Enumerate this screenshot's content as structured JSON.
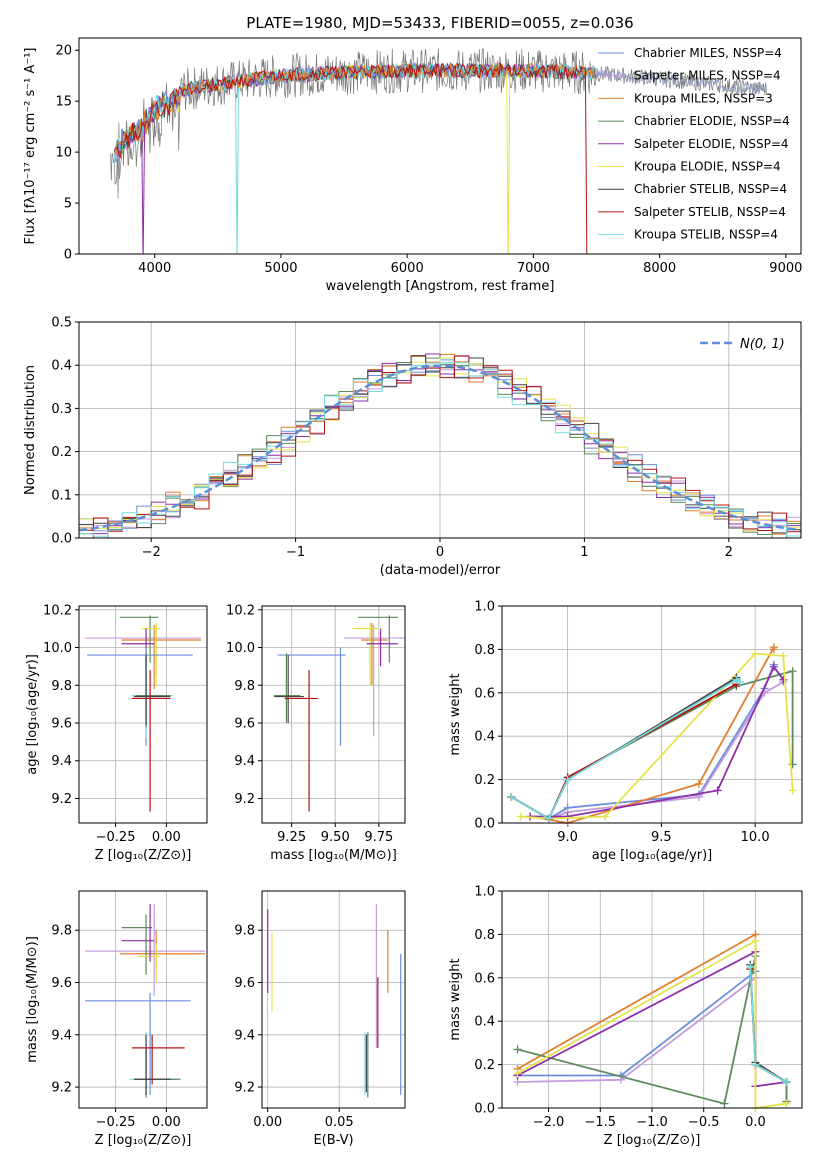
{
  "colors": [
    "#6b8fdc",
    "#c49ae0",
    "#e07f2f",
    "#5e8a5e",
    "#8e2fa8",
    "#e6e24b",
    "#444444",
    "#b01515",
    "#73dbe0"
  ],
  "chart_data": [
    {
      "type": "line",
      "title": "PLATE=1980, MJD=53433, FIBERID=0055, z=0.036",
      "xlabel": "wavelength [Angstrom, rest frame]",
      "ylabel": "Flux [fλ10⁻¹⁷ erg cm⁻² s⁻¹ A⁻¹]",
      "xlim": [
        3400,
        9120
      ],
      "ylim": [
        0,
        21.2
      ],
      "xticks": [
        "4000",
        "5000",
        "6000",
        "7000",
        "8000",
        "9000"
      ],
      "yticks": [
        "0",
        "5",
        "10",
        "15",
        "20"
      ],
      "legend_position": "right",
      "legend": [
        "Chabrier MILES, NSSP=4",
        "Salpeter MILES, NSSP=4",
        "Kroupa MILES, NSSP=3",
        "Chabrier ELODIE, NSSP=4",
        "Salpeter ELODIE, NSSP=4",
        "Kroupa ELODIE, NSSP=4",
        "Chabrier STELIB, NSSP=4",
        "Salpeter STELIB, NSSP=4",
        "Kroupa STELIB, NSSP=4"
      ],
      "continuum": {
        "x": [
          3650,
          3750,
          3900,
          4000,
          4200,
          4400,
          4700,
          5000,
          5500,
          6000,
          6500,
          7000,
          7400,
          8000,
          8800
        ],
        "y": [
          10,
          12,
          13,
          15,
          16,
          16.5,
          17,
          17.5,
          17.8,
          18,
          18,
          18,
          17.8,
          17.2,
          16.2
        ]
      },
      "drops": [
        {
          "x": 3900,
          "series": "Salpeter ELODIE"
        },
        {
          "x": 4650,
          "series": "Kroupa STELIB"
        },
        {
          "x": 6800,
          "series": "Kroupa ELODIE"
        },
        {
          "x": 7420,
          "series": "Salpeter STELIB"
        }
      ],
      "model_end": 7500,
      "data_range": [
        3650,
        8850
      ]
    },
    {
      "type": "histogram",
      "xlabel": "(data-model)/error",
      "ylabel": "Normed distribution",
      "xlim": [
        -2.5,
        2.5
      ],
      "ylim": [
        0,
        0.5
      ],
      "xticks": [
        "−2",
        "−1",
        "0",
        "1",
        "2"
      ],
      "yticks": [
        "0.0",
        "0.1",
        "0.2",
        "0.3",
        "0.4",
        "0.5"
      ],
      "legend": [
        "N(0, 1)"
      ],
      "grid": true
    },
    {
      "type": "errorbar",
      "xlabel": "Z [log₁₀(Z/Z⊙)]",
      "ylabel": "age  [log₁₀(age/yr)]",
      "xlim": [
        -0.43,
        0.2
      ],
      "ylim": [
        9.07,
        10.22
      ],
      "xticks": [
        "−0.25",
        "0.00"
      ],
      "yticks": [
        "9.2",
        "9.4",
        "9.6",
        "9.8",
        "10.0",
        "10.2"
      ],
      "points": [
        {
          "x": -0.05,
          "y": 10.05,
          "xe": [
            -0.4,
            0.17
          ],
          "ye": [
            9.85,
            10.12
          ],
          "c": 1
        },
        {
          "x": -0.06,
          "y": 10.04,
          "xe": [
            -0.22,
            0.17
          ],
          "ye": [
            9.78,
            10.12
          ],
          "c": 2
        },
        {
          "x": -0.08,
          "y": 10.16,
          "xe": [
            -0.23,
            -0.04
          ],
          "ye": [
            9.92,
            10.17
          ],
          "c": 3
        },
        {
          "x": -0.05,
          "y": 10.1,
          "xe": [
            -0.12,
            -0.03
          ],
          "ye": [
            9.8,
            10.13
          ],
          "c": 5
        },
        {
          "x": -0.1,
          "y": 10.02,
          "xe": [
            -0.22,
            -0.06
          ],
          "ye": [
            9.9,
            10.1
          ],
          "c": 4
        },
        {
          "x": -0.1,
          "y": 9.96,
          "xe": [
            -0.39,
            0.13
          ],
          "ye": [
            9.48,
            10.0
          ],
          "c": 0
        },
        {
          "x": -0.1,
          "y": 9.745,
          "xe": [
            -0.17,
            0.03
          ],
          "ye": [
            9.52,
            9.92
          ],
          "c": 8
        },
        {
          "x": -0.1,
          "y": 9.745,
          "xe": [
            -0.15,
            0.02
          ],
          "ye": [
            9.58,
            9.97
          ],
          "c": 3
        },
        {
          "x": -0.1,
          "y": 9.74,
          "xe": [
            -0.16,
            0.02
          ],
          "ye": [
            9.59,
            9.96
          ],
          "c": 6
        },
        {
          "x": -0.08,
          "y": 9.73,
          "xe": [
            -0.17,
            0.02
          ],
          "ye": [
            9.13,
            9.88
          ],
          "c": 7
        }
      ]
    },
    {
      "type": "errorbar",
      "xlabel": "mass [log₁₀(M/M⊙)]",
      "ylabel": "",
      "xlim": [
        9.08,
        9.9
      ],
      "ylim": [
        9.07,
        10.22
      ],
      "xticks": [
        "9.25",
        "9.50",
        "9.75"
      ],
      "yticks": [
        "9.2",
        "9.4",
        "9.6",
        "9.8",
        "10.0",
        "10.2"
      ],
      "points": [
        {
          "x": 9.72,
          "y": 10.05,
          "xe": [
            9.55,
            9.9
          ],
          "ye": [
            9.53,
            10.12
          ],
          "c": 1
        },
        {
          "x": 9.71,
          "y": 10.04,
          "xe": [
            9.65,
            9.8
          ],
          "ye": [
            9.8,
            10.13
          ],
          "c": 2
        },
        {
          "x": 9.81,
          "y": 10.16,
          "xe": [
            9.63,
            9.86
          ],
          "ye": [
            9.92,
            10.17
          ],
          "c": 3
        },
        {
          "x": 9.7,
          "y": 10.1,
          "xe": [
            9.6,
            9.75
          ],
          "ye": [
            9.8,
            10.13
          ],
          "c": 5
        },
        {
          "x": 9.76,
          "y": 10.02,
          "xe": [
            9.68,
            9.86
          ],
          "ye": [
            9.9,
            10.1
          ],
          "c": 4
        },
        {
          "x": 9.53,
          "y": 9.96,
          "xe": [
            9.17,
            9.56
          ],
          "ye": [
            9.48,
            10.0
          ],
          "c": 0
        },
        {
          "x": 9.22,
          "y": 9.745,
          "xe": [
            9.15,
            9.24
          ],
          "ye": [
            9.62,
            9.92
          ],
          "c": 8
        },
        {
          "x": 9.22,
          "y": 9.745,
          "xe": [
            9.15,
            9.3
          ],
          "ye": [
            9.6,
            9.97
          ],
          "c": 3
        },
        {
          "x": 9.23,
          "y": 9.74,
          "xe": [
            9.15,
            9.32
          ],
          "ye": [
            9.6,
            9.96
          ],
          "c": 6
        },
        {
          "x": 9.35,
          "y": 9.73,
          "xe": [
            9.21,
            9.4
          ],
          "ye": [
            9.13,
            9.88
          ],
          "c": 7
        }
      ]
    },
    {
      "type": "line",
      "xlabel": "age  [log₁₀(age/yr)]",
      "ylabel": "mass weight",
      "xlim": [
        8.65,
        10.25
      ],
      "ylim": [
        0,
        1.0
      ],
      "xticks": [
        "9.0",
        "9.5",
        "10.0"
      ],
      "yticks": [
        "0.0",
        "0.2",
        "0.4",
        "0.6",
        "0.8",
        "1.0"
      ],
      "grid": true,
      "series": [
        {
          "c": 0,
          "x": [
            8.7,
            8.9,
            9.0,
            9.7,
            10.05,
            10.1
          ],
          "y": [
            0.12,
            0.02,
            0.07,
            0.13,
            0.62,
            0.73
          ]
        },
        {
          "c": 1,
          "x": [
            8.7,
            8.9,
            9.0,
            9.7,
            10.05,
            10.15
          ],
          "y": [
            0.12,
            0.02,
            0.05,
            0.12,
            0.6,
            0.65
          ]
        },
        {
          "c": 2,
          "x": [
            8.8,
            9.0,
            9.7,
            10.1,
            10.1
          ],
          "y": [
            0.03,
            0.0,
            0.18,
            0.81,
            0.8
          ]
        },
        {
          "c": 3,
          "x": [
            8.7,
            8.9,
            9.0,
            9.9,
            10.2,
            10.2
          ],
          "y": [
            0.12,
            0.02,
            0.21,
            0.63,
            0.7,
            0.27
          ]
        },
        {
          "c": 4,
          "x": [
            8.8,
            9.0,
            9.8,
            10.1,
            10.15
          ],
          "y": [
            0.03,
            0.03,
            0.15,
            0.72,
            0.66
          ]
        },
        {
          "c": 5,
          "x": [
            8.75,
            8.9,
            9.2,
            10.0,
            10.15,
            10.2
          ],
          "y": [
            0.03,
            0.02,
            0.03,
            0.78,
            0.77,
            0.15
          ]
        },
        {
          "c": 6,
          "x": [
            8.7,
            8.9,
            9.0,
            9.9,
            9.9
          ],
          "y": [
            0.12,
            0.02,
            0.2,
            0.67,
            0.66
          ]
        },
        {
          "c": 7,
          "x": [
            8.7,
            8.9,
            9.0,
            9.9
          ],
          "y": [
            0.12,
            0.02,
            0.21,
            0.64
          ]
        },
        {
          "c": 8,
          "x": [
            8.7,
            8.9,
            9.0,
            9.9,
            9.92
          ],
          "y": [
            0.12,
            0.02,
            0.2,
            0.66,
            0.65
          ]
        }
      ]
    },
    {
      "type": "errorbar",
      "xlabel": "Z [log₁₀(Z/Z⊙)]",
      "ylabel": "mass [log₁₀(M/M⊙)]",
      "xlim": [
        -0.43,
        0.2
      ],
      "ylim": [
        9.12,
        9.95
      ],
      "xticks": [
        "−0.25",
        "0.00"
      ],
      "yticks": [
        "9.2",
        "9.4",
        "9.6",
        "9.8"
      ],
      "points": [
        {
          "x": -0.06,
          "y": 9.72,
          "xe": [
            -0.4,
            0.19
          ],
          "ye": [
            9.55,
            9.9
          ],
          "c": 1
        },
        {
          "x": -0.05,
          "y": 9.71,
          "xe": [
            -0.23,
            0.19
          ],
          "ye": [
            9.65,
            9.8
          ],
          "c": 2
        },
        {
          "x": -0.1,
          "y": 9.81,
          "xe": [
            -0.22,
            -0.07
          ],
          "ye": [
            9.63,
            9.86
          ],
          "c": 3
        },
        {
          "x": -0.05,
          "y": 9.7,
          "xe": [
            -0.14,
            -0.03
          ],
          "ye": [
            9.6,
            9.75
          ],
          "c": 5
        },
        {
          "x": -0.08,
          "y": 9.76,
          "xe": [
            -0.22,
            -0.06
          ],
          "ye": [
            9.68,
            9.9
          ],
          "c": 4
        },
        {
          "x": -0.08,
          "y": 9.53,
          "xe": [
            -0.4,
            0.12
          ],
          "ye": [
            9.17,
            9.56
          ],
          "c": 0
        },
        {
          "x": -0.1,
          "y": 9.23,
          "xe": [
            -0.18,
            0.05
          ],
          "ye": [
            9.17,
            9.41
          ],
          "c": 8
        },
        {
          "x": -0.1,
          "y": 9.23,
          "xe": [
            -0.15,
            0.07
          ],
          "ye": [
            9.16,
            9.35
          ],
          "c": 3
        },
        {
          "x": -0.1,
          "y": 9.23,
          "xe": [
            -0.16,
            0.02
          ],
          "ye": [
            9.17,
            9.4
          ],
          "c": 6
        },
        {
          "x": -0.07,
          "y": 9.35,
          "xe": [
            -0.17,
            0.09
          ],
          "ye": [
            9.21,
            9.4
          ],
          "c": 7
        }
      ]
    },
    {
      "type": "errorbar",
      "xlabel": "E(B-V)",
      "ylabel": "",
      "xlim": [
        -0.004,
        0.096
      ],
      "ylim": [
        9.12,
        9.95
      ],
      "xticks": [
        "0.00",
        "0.05"
      ],
      "yticks": [
        "9.2",
        "9.4",
        "9.6",
        "9.8"
      ],
      "points": [
        {
          "x": 0.0,
          "ye": [
            9.56,
            9.88
          ],
          "c": 4
        },
        {
          "x": 0.003,
          "ye": [
            9.49,
            9.79
          ],
          "c": 5
        },
        {
          "x": 0.068,
          "ye": [
            9.17,
            9.41
          ],
          "c": 8
        },
        {
          "x": 0.07,
          "ye": [
            9.16,
            9.41
          ],
          "c": 3
        },
        {
          "x": 0.069,
          "ye": [
            9.18,
            9.4
          ],
          "c": 6
        },
        {
          "x": 0.076,
          "ye": [
            9.35,
            9.9
          ],
          "c": 1
        },
        {
          "x": 0.077,
          "ye": [
            9.35,
            9.62
          ],
          "c": 7
        },
        {
          "x": 0.084,
          "ye": [
            9.56,
            9.8
          ],
          "c": 2
        },
        {
          "x": 0.093,
          "ye": [
            9.17,
            9.71
          ],
          "c": 0
        }
      ]
    },
    {
      "type": "line",
      "xlabel": "Z [log₁₀(Z/Z⊙)]",
      "ylabel": "mass weight",
      "xlim": [
        -2.45,
        0.45
      ],
      "ylim": [
        0,
        1.0
      ],
      "xticks": [
        "−2.0",
        "−1.5",
        "−1.0",
        "−0.5",
        "0.0"
      ],
      "yticks": [
        "0.0",
        "0.2",
        "0.4",
        "0.6",
        "0.8",
        "1.0"
      ],
      "grid": true,
      "series": [
        {
          "c": 0,
          "x": [
            -2.3,
            -1.3,
            0.0,
            0.0,
            0.3,
            0.3
          ],
          "y": [
            0.15,
            0.15,
            0.63,
            0.2,
            0.12,
            0.03
          ]
        },
        {
          "c": 1,
          "x": [
            -2.3,
            -1.3,
            0.0,
            0.0,
            0.3,
            0.3
          ],
          "y": [
            0.12,
            0.13,
            0.6,
            0.2,
            0.12,
            0.03
          ]
        },
        {
          "c": 2,
          "x": [
            -2.3,
            0.0,
            0.0,
            0.3
          ],
          "y": [
            0.18,
            0.8,
            0.2,
            0.12
          ]
        },
        {
          "c": 3,
          "x": [
            -2.3,
            -0.3,
            0.0,
            0.0,
            0.3,
            0.3
          ],
          "y": [
            0.27,
            0.02,
            0.7,
            0.2,
            0.12,
            0.03
          ]
        },
        {
          "c": 4,
          "x": [
            -2.3,
            0.0,
            0.0,
            0.3
          ],
          "y": [
            0.15,
            0.72,
            0.1,
            0.12
          ]
        },
        {
          "c": 5,
          "x": [
            -2.3,
            0.0,
            0.0,
            0.3
          ],
          "y": [
            0.16,
            0.77,
            0.0,
            0.02
          ]
        },
        {
          "c": 6,
          "x": [
            -0.05,
            0.0,
            0.3,
            0.3
          ],
          "y": [
            0.66,
            0.21,
            0.12,
            0.12
          ]
        },
        {
          "c": 7,
          "x": [
            -0.05,
            0.0,
            0.3,
            0.3
          ],
          "y": [
            0.64,
            0.2,
            0.12,
            0.12
          ]
        },
        {
          "c": 8,
          "x": [
            -0.05,
            0.0,
            0.3,
            0.3
          ],
          "y": [
            0.65,
            0.2,
            0.12,
            0.12
          ]
        }
      ]
    }
  ]
}
